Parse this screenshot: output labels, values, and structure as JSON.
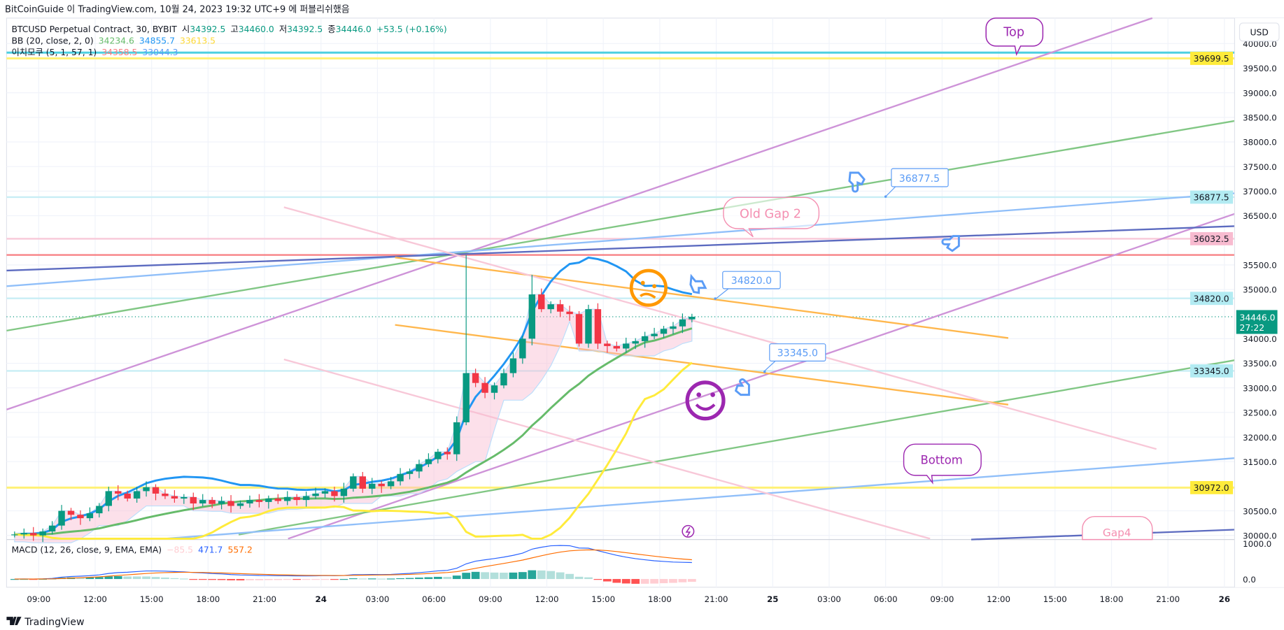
{
  "publish_line": "BitCoinGuide 이 TradingView.com, 10월 24, 2023 19:32 UTC+9 에 퍼블리쉬했음",
  "legend": {
    "symbol": "BTCUSD Perpetual Contract, 30, BYBIT",
    "o_label": "시",
    "o": "34392.5",
    "h_label": "고",
    "h": "34460.0",
    "l_label": "저",
    "l": "34392.5",
    "c_label": "종",
    "c": "34446.0",
    "change": "+53.5 (+0.16%)",
    "bb_label": "BB (20, close, 2, 0)",
    "bb_basis": "34234.6",
    "bb_upper": "34855.7",
    "bb_lower": "33613.5",
    "ichi_label": "이치모쿠 (5, 1, 57, 1)",
    "ichi_a": "34358.5",
    "ichi_b": "33044.3",
    "macd_label": "MACD (12, 26, close, 9, EMA, EMA)",
    "macd_hist": "−85.5",
    "macd_line": "471.7",
    "macd_signal": "557.2"
  },
  "currency_button": "USD",
  "colors": {
    "up": "#089981",
    "down": "#f23645",
    "bb_basis": "#66bb6a",
    "bb_upper": "#2196f3",
    "bb_lower": "#ffeb3b",
    "macd": "#2962ff",
    "signal": "#ff6d00"
  },
  "chart_data": {
    "type": "candlestick",
    "symbol": "BTCUSD",
    "interval": "30",
    "ylim": [
      30000,
      40000
    ],
    "y_ticks": [
      "40000.0",
      "39500.0",
      "39000.0",
      "38500.0",
      "38000.0",
      "37500.0",
      "37000.0",
      "36500.0",
      "35500.0",
      "35000.0",
      "34000.0",
      "33500.0",
      "33000.0",
      "32500.0",
      "32000.0",
      "31500.0",
      "30500.0",
      "30000.0"
    ],
    "x_ticks": [
      "09:00",
      "12:00",
      "15:00",
      "18:00",
      "21:00",
      "24",
      "03:00",
      "06:00",
      "09:00",
      "12:00",
      "15:00",
      "18:00",
      "21:00",
      "25",
      "03:00",
      "06:00",
      "09:00",
      "12:00",
      "15:00",
      "18:00",
      "21:00",
      "26"
    ],
    "first_bar": "23 07:30",
    "bar_minutes": 30,
    "closes": [
      30020,
      30050,
      30000,
      30080,
      30200,
      30500,
      30420,
      30350,
      30450,
      30600,
      30900,
      30850,
      30750,
      30900,
      30980,
      30850,
      30800,
      30750,
      30780,
      30650,
      30720,
      30640,
      30700,
      30600,
      30650,
      30720,
      30680,
      30750,
      30700,
      30780,
      30720,
      30800,
      30850,
      30900,
      30800,
      30950,
      31200,
      30950,
      31050,
      31000,
      31100,
      31250,
      31300,
      31450,
      31550,
      31700,
      31650,
      32300,
      33300,
      33100,
      32900,
      33050,
      33300,
      33600,
      34000,
      34900,
      34600,
      34700,
      34550,
      34500,
      33900,
      34600,
      33900,
      33850,
      33800,
      33900,
      33950,
      34050,
      34100,
      34200,
      34250,
      34392.5,
      34446
    ],
    "special_highs": {
      "48": 35700,
      "55": 35300
    },
    "price_labels": [
      {
        "text": "39699.5",
        "price": 39699.5,
        "bg": "#ffeb3b"
      },
      {
        "text": "36877.5",
        "price": 36877.5,
        "bg": "#b2ebf2"
      },
      {
        "text": "36032.5",
        "price": 36032.5,
        "bg": "#f8bbd0"
      },
      {
        "text": "34820.0",
        "price": 34820,
        "bg": "#b2ebf2"
      },
      {
        "text": "33345.0",
        "price": 33345,
        "bg": "#b2ebf2"
      },
      {
        "text": "30972.0",
        "price": 30972,
        "bg": "#ffeb3b"
      }
    ],
    "last_price": {
      "text": "34446.0",
      "countdown": "27:22"
    },
    "macd_ticks": [
      "1000.0",
      "0.0"
    ],
    "annotations": {
      "top": "Top",
      "old_gap": "Old Gap 2",
      "bottom": "Bottom",
      "gap4": "Gap4",
      "c1": "36877.5",
      "c2": "34820.0",
      "c3": "33345.0"
    }
  },
  "footer": "TradingView"
}
